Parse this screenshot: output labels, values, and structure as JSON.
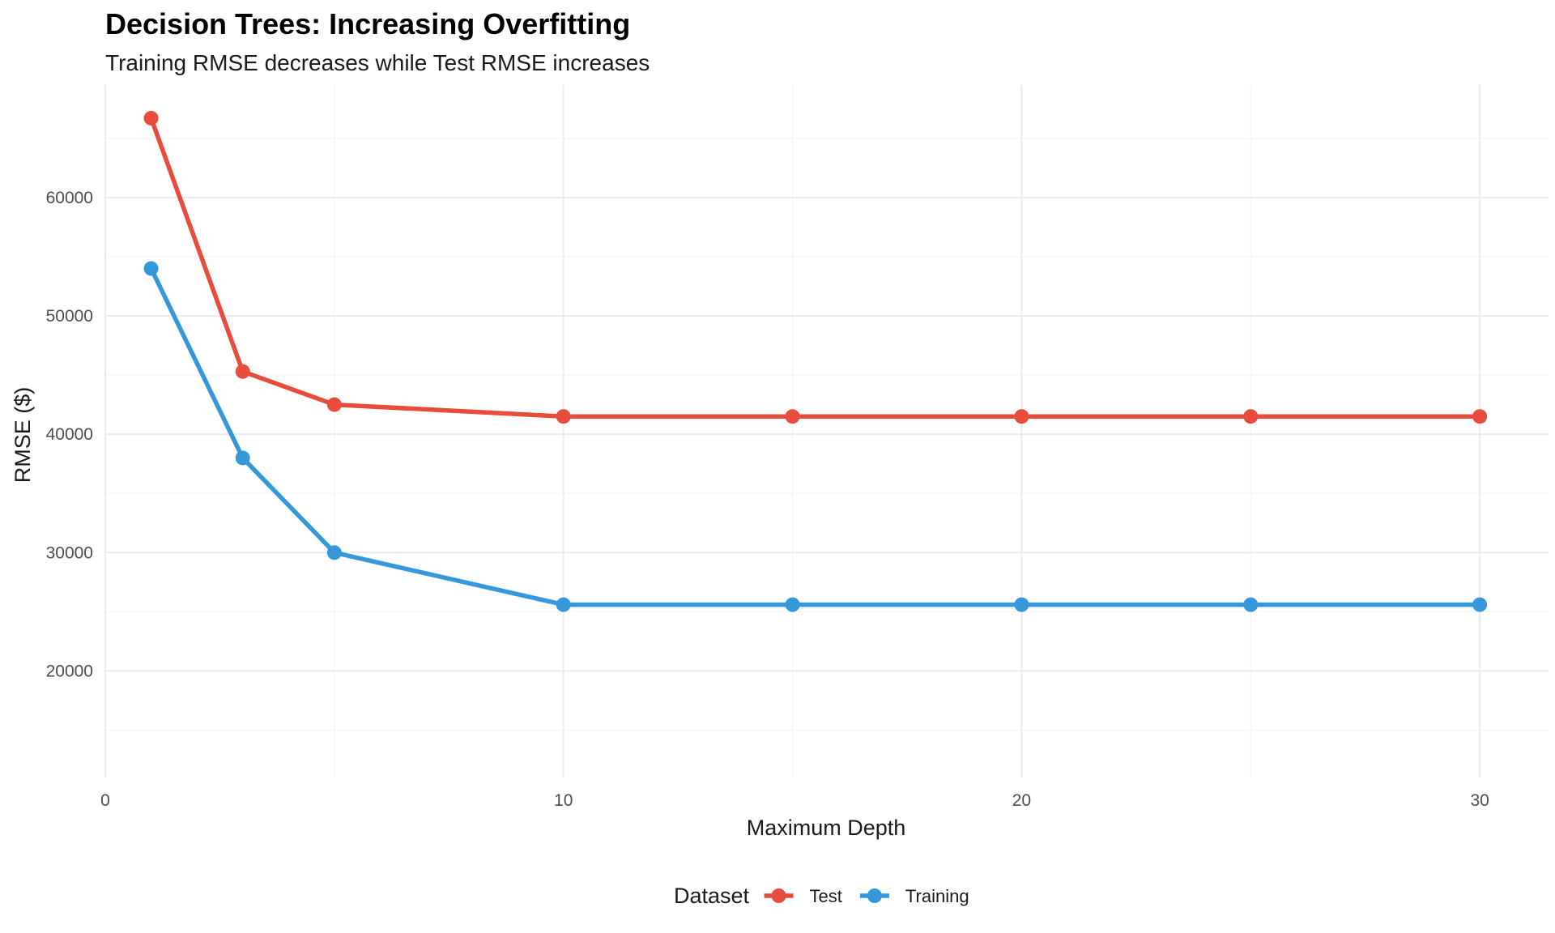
{
  "chart_data": {
    "type": "line",
    "title": "Decision Trees: Increasing Overfitting",
    "subtitle": "Training RMSE decreases while Test RMSE increases",
    "xlabel": "Maximum Depth",
    "ylabel": "RMSE ($)",
    "xlim": [
      0,
      31.5
    ],
    "ylim": [
      11000,
      69500
    ],
    "x_ticks": [
      0,
      10,
      20,
      30
    ],
    "y_ticks": [
      20000,
      30000,
      40000,
      50000,
      60000
    ],
    "grid": true,
    "legend": {
      "title": "Dataset",
      "position": "bottom"
    },
    "series": [
      {
        "name": "Test",
        "color": "#e74c3c",
        "x": [
          1,
          3,
          5,
          10,
          15,
          20,
          25,
          30
        ],
        "y": [
          66700,
          45300,
          42500,
          41500,
          41500,
          41500,
          41500,
          41500
        ]
      },
      {
        "name": "Training",
        "color": "#3498db",
        "x": [
          1,
          3,
          5,
          10,
          15,
          20,
          25,
          30
        ],
        "y": [
          54000,
          38000,
          30000,
          25600,
          25600,
          25600,
          25600,
          25600
        ]
      }
    ]
  }
}
